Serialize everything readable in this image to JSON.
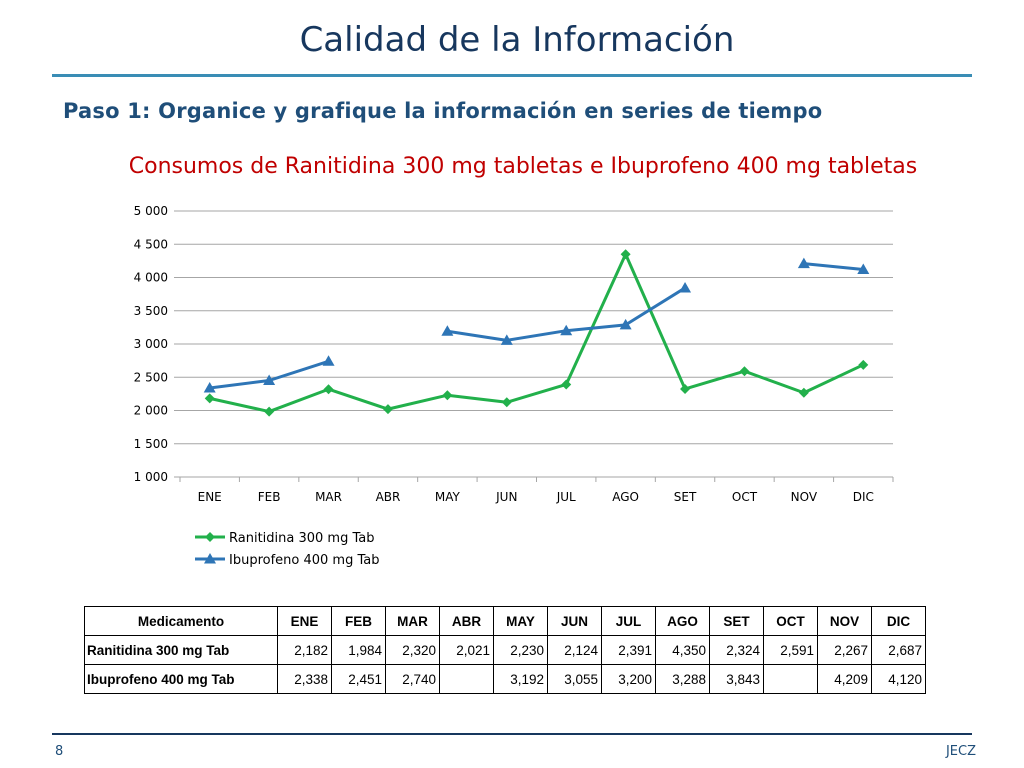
{
  "slide": {
    "title": "Calidad de la Información",
    "subtitle": "Paso 1: Organice y grafique la información en series de tiempo",
    "page_number": "8",
    "footer_right": "JECZ"
  },
  "colors": {
    "ranitidina": "#22b04b",
    "ibuprofeno": "#2e75b6",
    "gridline": "#a6a6a6"
  },
  "chart_data": {
    "type": "line",
    "title": "Consumos de Ranitidina 300 mg tabletas e Ibuprofeno 400 mg tabletas",
    "categories": [
      "ENE",
      "FEB",
      "MAR",
      "ABR",
      "MAY",
      "JUN",
      "JUL",
      "AGO",
      "SET",
      "OCT",
      "NOV",
      "DIC"
    ],
    "ylim": [
      1000,
      5000
    ],
    "yticks": [
      5000,
      4500,
      4000,
      3500,
      3000,
      2500,
      2000,
      1500,
      1000
    ],
    "ytick_labels": [
      "5 000",
      "4 500",
      "4 000",
      "3 500",
      "3 000",
      "2 500",
      "2 000",
      "1 500",
      "1 000"
    ],
    "grid": true,
    "legend": "bottom-left",
    "series": [
      {
        "name": "Ranitidina 300 mg Tab",
        "marker": "diamond",
        "values": [
          2182,
          1984,
          2320,
          2021,
          2230,
          2124,
          2391,
          4350,
          2324,
          2591,
          2267,
          2687
        ]
      },
      {
        "name": "Ibuprofeno 400 mg Tab",
        "marker": "triangle",
        "values": [
          2338,
          2451,
          2740,
          null,
          3192,
          3055,
          3200,
          3288,
          3843,
          null,
          4209,
          4120
        ]
      }
    ]
  },
  "table": {
    "header_label": "Medicamento",
    "months": [
      "ENE",
      "FEB",
      "MAR",
      "ABR",
      "MAY",
      "JUN",
      "JUL",
      "AGO",
      "SET",
      "OCT",
      "NOV",
      "DIC"
    ],
    "rows": [
      {
        "label": "Ranitidina 300 mg Tab",
        "cells": [
          "2,182",
          "1,984",
          "2,320",
          "2,021",
          "2,230",
          "2,124",
          "2,391",
          "4,350",
          "2,324",
          "2,591",
          "2,267",
          "2,687"
        ]
      },
      {
        "label": "Ibuprofeno 400 mg Tab",
        "cells": [
          "2,338",
          "2,451",
          "2,740",
          "",
          "3,192",
          "3,055",
          "3,200",
          "3,288",
          "3,843",
          "",
          "4,209",
          "4,120"
        ]
      }
    ]
  }
}
